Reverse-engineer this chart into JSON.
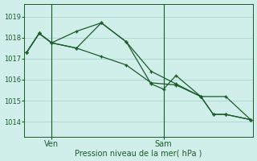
{
  "background_color": "#d0eeea",
  "grid_color": "#b0d8d4",
  "line_color": "#1a5c28",
  "xlabel": "Pression niveau de la mer( hPa )",
  "ytick_values": [
    1014,
    1015,
    1016,
    1017,
    1018,
    1019
  ],
  "ylim": [
    1013.3,
    1019.6
  ],
  "xlim": [
    -0.1,
    9.1
  ],
  "ven_x": 1.0,
  "sam_x": 5.5,
  "series1_x": [
    0,
    0.5,
    1,
    2,
    3,
    4,
    5,
    6,
    7,
    7.5,
    8,
    9
  ],
  "series1_y": [
    1017.3,
    1018.2,
    1017.75,
    1018.3,
    1018.7,
    1017.8,
    1016.4,
    1015.8,
    1015.2,
    1014.35,
    1014.35,
    1014.1
  ],
  "series2_x": [
    0,
    0.5,
    1,
    2,
    3,
    4,
    5,
    6,
    7,
    8,
    9
  ],
  "series2_y": [
    1017.3,
    1018.2,
    1017.75,
    1017.5,
    1017.1,
    1016.7,
    1015.85,
    1015.75,
    1015.2,
    1015.2,
    1014.1
  ],
  "series3_x": [
    0,
    0.5,
    1,
    2,
    3,
    4,
    5,
    5.5,
    6,
    7,
    7.5,
    8,
    9
  ],
  "series3_y": [
    1017.3,
    1018.2,
    1017.75,
    1017.5,
    1018.7,
    1017.8,
    1015.8,
    1015.55,
    1016.2,
    1015.2,
    1014.35,
    1014.35,
    1014.1
  ]
}
